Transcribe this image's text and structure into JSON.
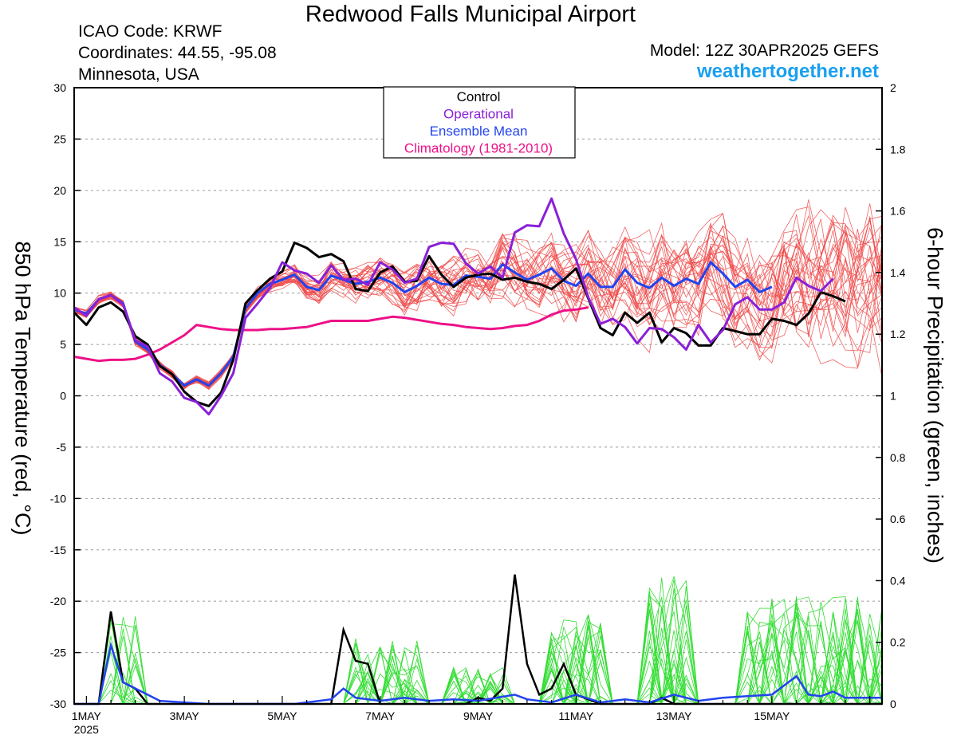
{
  "header": {
    "title": "Redwood Falls Municipal Airport",
    "icao": "ICAO Code: KRWF",
    "coordinates": "Coordinates: 44.55, -95.08",
    "region": "Minnesota, USA",
    "model": "Model: 12Z 30APR2025 GEFS",
    "site": "weathertogether.net"
  },
  "colors": {
    "control": "#000000",
    "operational": "#8a20d8",
    "ensemble_mean": "#2244ee",
    "climatology": "#ee1188",
    "members_temp": "#f04848",
    "members_precip": "#33dd33",
    "site": "#1aa0f0"
  },
  "chart_data": {
    "type": "line",
    "title": "Redwood Falls Municipal Airport",
    "ylabel_left": "850 hPa Temperature (red, °C)",
    "ylabel_right": "6-hour Precipitation (green, inches)",
    "ylim_left": [
      -30,
      30
    ],
    "ylim_right": [
      0,
      2
    ],
    "yticks_left": [
      30,
      25,
      20,
      15,
      10,
      5,
      0,
      -5,
      -10,
      -15,
      -20,
      -25,
      -30
    ],
    "yticks_right": [
      "2",
      "1.8",
      "1.6",
      "1.4",
      "1.2",
      "1",
      "0.8",
      "0.6",
      "0.4",
      "0.2",
      "0"
    ],
    "x_unit": "days since 00Z 1 May 2025",
    "xlim": [
      -0.25,
      16.25
    ],
    "xticks": [
      {
        "x": 0,
        "label": "1MAY",
        "sub": "2025"
      },
      {
        "x": 2,
        "label": "3MAY",
        "sub": ""
      },
      {
        "x": 4,
        "label": "5MAY",
        "sub": ""
      },
      {
        "x": 6,
        "label": "7MAY",
        "sub": ""
      },
      {
        "x": 8,
        "label": "9MAY",
        "sub": ""
      },
      {
        "x": 10,
        "label": "11MAY",
        "sub": ""
      },
      {
        "x": 12,
        "label": "13MAY",
        "sub": ""
      },
      {
        "x": 14,
        "label": "15MAY",
        "sub": ""
      }
    ],
    "grid": "dotted horizontal",
    "legend_position": "top-center",
    "legend": [
      "Control",
      "Operational",
      "Ensemble Mean",
      "Climatology (1981-2010)"
    ],
    "series": [
      {
        "name": "Control",
        "kind": "temperature",
        "color": "#000000",
        "points": [
          [
            -0.25,
            8.1
          ],
          [
            0,
            6.9
          ],
          [
            0.25,
            8.6
          ],
          [
            0.5,
            9.1
          ],
          [
            0.75,
            8.2
          ],
          [
            1,
            5.8
          ],
          [
            1.25,
            5.0
          ],
          [
            1.5,
            2.9
          ],
          [
            1.75,
            2.1
          ],
          [
            2,
            0.4
          ],
          [
            2.25,
            -0.6
          ],
          [
            2.5,
            -1.0
          ],
          [
            2.75,
            0.3
          ],
          [
            3,
            3.5
          ],
          [
            3.25,
            9.0
          ],
          [
            3.5,
            10.3
          ],
          [
            3.75,
            11.4
          ],
          [
            4,
            12.1
          ],
          [
            4.25,
            14.9
          ],
          [
            4.5,
            14.4
          ],
          [
            4.75,
            13.5
          ],
          [
            5,
            13.8
          ],
          [
            5.25,
            13.1
          ],
          [
            5.5,
            10.4
          ],
          [
            5.75,
            10.2
          ],
          [
            6,
            12.0
          ],
          [
            6.25,
            12.6
          ],
          [
            6.5,
            11.1
          ],
          [
            6.75,
            11.2
          ],
          [
            7,
            13.6
          ],
          [
            7.25,
            11.8
          ],
          [
            7.5,
            10.6
          ],
          [
            7.75,
            11.5
          ],
          [
            8,
            11.8
          ],
          [
            8.25,
            11.9
          ],
          [
            8.5,
            11.3
          ],
          [
            8.75,
            11.5
          ],
          [
            9,
            11.1
          ],
          [
            9.25,
            10.9
          ],
          [
            9.5,
            10.4
          ],
          [
            9.75,
            11.3
          ],
          [
            10,
            12.4
          ],
          [
            10.25,
            9.5
          ],
          [
            10.5,
            6.6
          ],
          [
            10.75,
            5.9
          ],
          [
            11,
            8.1
          ],
          [
            11.25,
            7.1
          ],
          [
            11.5,
            8.1
          ],
          [
            11.75,
            5.2
          ],
          [
            12,
            6.6
          ],
          [
            12.25,
            6.1
          ],
          [
            12.5,
            4.9
          ],
          [
            12.75,
            4.9
          ],
          [
            13,
            6.6
          ],
          [
            13.25,
            6.3
          ],
          [
            13.5,
            6.0
          ],
          [
            13.75,
            6.0
          ],
          [
            14,
            7.5
          ],
          [
            14.25,
            7.3
          ],
          [
            14.5,
            6.9
          ],
          [
            14.75,
            8.0
          ],
          [
            15,
            10.1
          ],
          [
            15.25,
            9.7
          ],
          [
            15.5,
            9.2
          ]
        ]
      },
      {
        "name": "Operational",
        "kind": "temperature",
        "color": "#8a20d8",
        "points": [
          [
            -0.25,
            8.6
          ],
          [
            0,
            7.8
          ],
          [
            0.25,
            9.4
          ],
          [
            0.5,
            9.8
          ],
          [
            0.75,
            8.9
          ],
          [
            1,
            5.4
          ],
          [
            1.25,
            4.8
          ],
          [
            1.5,
            2.2
          ],
          [
            1.75,
            1.4
          ],
          [
            2,
            -0.2
          ],
          [
            2.25,
            -0.6
          ],
          [
            2.5,
            -1.8
          ],
          [
            2.75,
            0.0
          ],
          [
            3,
            2.2
          ],
          [
            3.25,
            7.6
          ],
          [
            3.5,
            9.0
          ],
          [
            3.75,
            10.5
          ],
          [
            4,
            13.0
          ],
          [
            4.25,
            12.2
          ],
          [
            4.5,
            11.9
          ],
          [
            4.75,
            11.0
          ],
          [
            5,
            12.7
          ],
          [
            5.25,
            11.3
          ],
          [
            5.5,
            11.4
          ],
          [
            5.75,
            10.8
          ],
          [
            6,
            13.0
          ],
          [
            6.25,
            12.3
          ],
          [
            6.5,
            11.0
          ],
          [
            6.75,
            11.4
          ],
          [
            7,
            14.5
          ],
          [
            7.25,
            14.9
          ],
          [
            7.5,
            14.8
          ],
          [
            7.75,
            12.9
          ],
          [
            8,
            11.9
          ],
          [
            8.25,
            12.6
          ],
          [
            8.5,
            11.5
          ],
          [
            8.75,
            15.9
          ],
          [
            9,
            16.6
          ],
          [
            9.25,
            16.5
          ],
          [
            9.5,
            19.2
          ],
          [
            9.75,
            15.8
          ],
          [
            10,
            13.3
          ],
          [
            10.25,
            9.6
          ],
          [
            10.5,
            7.0
          ],
          [
            10.75,
            7.5
          ],
          [
            11,
            6.7
          ],
          [
            11.25,
            5.1
          ],
          [
            11.5,
            6.6
          ],
          [
            11.75,
            6.5
          ],
          [
            12,
            5.7
          ],
          [
            12.25,
            4.5
          ],
          [
            12.5,
            6.9
          ],
          [
            12.75,
            5.2
          ],
          [
            13,
            6.4
          ],
          [
            13.25,
            8.9
          ],
          [
            13.5,
            9.6
          ],
          [
            13.75,
            8.4
          ],
          [
            14,
            8.4
          ],
          [
            14.25,
            9.1
          ],
          [
            14.5,
            11.5
          ],
          [
            14.75,
            10.7
          ],
          [
            15,
            10.2
          ],
          [
            15.25,
            11.4
          ]
        ]
      },
      {
        "name": "Ensemble Mean",
        "kind": "temperature",
        "color": "#2244ee",
        "points": [
          [
            -0.25,
            8.4
          ],
          [
            0,
            8.0
          ],
          [
            0.25,
            9.4
          ],
          [
            0.5,
            9.8
          ],
          [
            0.75,
            9.0
          ],
          [
            1,
            5.3
          ],
          [
            1.25,
            4.5
          ],
          [
            1.5,
            3.0
          ],
          [
            1.75,
            2.1
          ],
          [
            2,
            1.0
          ],
          [
            2.25,
            1.6
          ],
          [
            2.5,
            1.0
          ],
          [
            2.75,
            2.2
          ],
          [
            3,
            3.8
          ],
          [
            3.25,
            8.5
          ],
          [
            3.5,
            10.0
          ],
          [
            3.75,
            10.9
          ],
          [
            4,
            11.3
          ],
          [
            4.25,
            11.8
          ],
          [
            4.5,
            10.6
          ],
          [
            4.75,
            10.3
          ],
          [
            5,
            11.7
          ],
          [
            5.25,
            11.3
          ],
          [
            5.5,
            10.9
          ],
          [
            5.75,
            11.1
          ],
          [
            6,
            11.5
          ],
          [
            6.25,
            11.0
          ],
          [
            6.5,
            10.1
          ],
          [
            6.75,
            10.7
          ],
          [
            7,
            11.5
          ],
          [
            7.25,
            10.9
          ],
          [
            7.5,
            10.8
          ],
          [
            7.75,
            11.7
          ],
          [
            8,
            11.6
          ],
          [
            8.25,
            11.4
          ],
          [
            8.5,
            12.8
          ],
          [
            8.75,
            12.0
          ],
          [
            9,
            11.3
          ],
          [
            9.25,
            11.8
          ],
          [
            9.5,
            12.4
          ],
          [
            9.75,
            11.2
          ],
          [
            10,
            10.7
          ],
          [
            10.25,
            11.9
          ],
          [
            10.5,
            10.6
          ],
          [
            10.75,
            10.6
          ],
          [
            11,
            12.3
          ],
          [
            11.25,
            11.0
          ],
          [
            11.5,
            10.5
          ],
          [
            11.75,
            11.5
          ],
          [
            12,
            10.7
          ],
          [
            12.25,
            11.4
          ],
          [
            12.5,
            10.9
          ],
          [
            12.75,
            13.0
          ],
          [
            13,
            11.9
          ],
          [
            13.25,
            10.6
          ],
          [
            13.5,
            11.3
          ],
          [
            13.75,
            10.1
          ],
          [
            14,
            10.6
          ]
        ]
      },
      {
        "name": "Climatology (1981-2010)",
        "kind": "temperature",
        "color": "#ee1188",
        "points": [
          [
            -0.25,
            3.8
          ],
          [
            0,
            3.6
          ],
          [
            0.25,
            3.4
          ],
          [
            0.5,
            3.5
          ],
          [
            0.75,
            3.5
          ],
          [
            1,
            3.6
          ],
          [
            1.25,
            4.0
          ],
          [
            1.5,
            4.5
          ],
          [
            1.75,
            5.2
          ],
          [
            2,
            5.9
          ],
          [
            2.25,
            6.9
          ],
          [
            2.5,
            6.7
          ],
          [
            2.75,
            6.5
          ],
          [
            3,
            6.4
          ],
          [
            3.25,
            6.4
          ],
          [
            3.5,
            6.4
          ],
          [
            3.75,
            6.5
          ],
          [
            4,
            6.5
          ],
          [
            4.25,
            6.6
          ],
          [
            4.5,
            6.7
          ],
          [
            4.75,
            7.0
          ],
          [
            5,
            7.3
          ],
          [
            5.25,
            7.3
          ],
          [
            5.5,
            7.3
          ],
          [
            5.75,
            7.3
          ],
          [
            6,
            7.5
          ],
          [
            6.25,
            7.7
          ],
          [
            6.5,
            7.6
          ],
          [
            6.75,
            7.4
          ],
          [
            7,
            7.2
          ],
          [
            7.25,
            7.0
          ],
          [
            7.5,
            6.9
          ],
          [
            7.75,
            6.7
          ],
          [
            8,
            6.6
          ],
          [
            8.25,
            6.5
          ],
          [
            8.5,
            6.6
          ],
          [
            8.75,
            6.8
          ],
          [
            9,
            6.9
          ],
          [
            9.25,
            7.3
          ],
          [
            9.5,
            7.9
          ],
          [
            9.75,
            8.3
          ],
          [
            10,
            8.4
          ],
          [
            10.25,
            8.6
          ]
        ]
      }
    ]
  }
}
